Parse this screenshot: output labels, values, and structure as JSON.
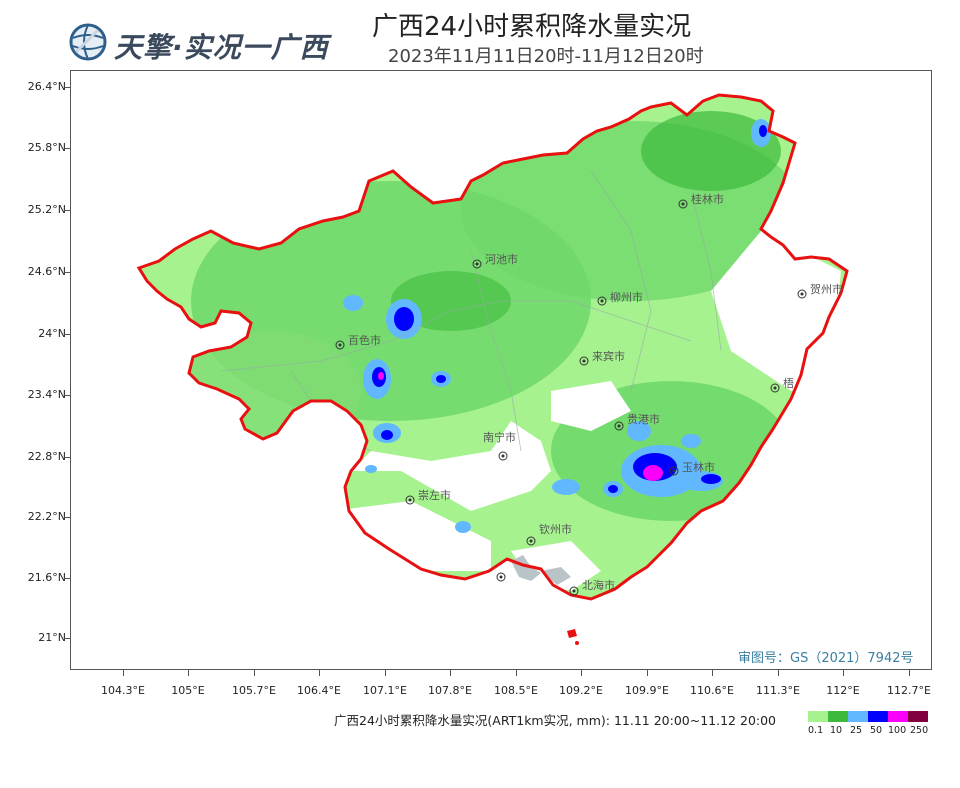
{
  "header": {
    "logo_text": "天擎·实况一广西",
    "title": "广西24小时累积降水量实况",
    "subtitle": "2023年11月11日20时-11月12日20时"
  },
  "map": {
    "lat_labels": [
      "26.4°N",
      "25.8°N",
      "25.2°N",
      "24.6°N",
      "24°N",
      "23.4°N",
      "22.8°N",
      "22.2°N",
      "21.6°N",
      "21°N"
    ],
    "lon_labels": [
      "104.3°E",
      "105°E",
      "105.7°E",
      "106.4°E",
      "107.1°E",
      "107.8°E",
      "108.5°E",
      "109.2°E",
      "109.9°E",
      "110.6°E",
      "111.3°E",
      "112°E",
      "112.7°E"
    ],
    "cities": [
      "桂林市",
      "河池市",
      "柳州市",
      "贺州市",
      "百色市",
      "来宾市",
      "梧",
      "贵港市",
      "南宁市",
      "玉林市",
      "崇左市",
      "钦州市",
      "北海市"
    ],
    "credit": "审图号：GS（2021）7942号",
    "colors": {
      "border": "#e81010",
      "light_green": "#a6f28f",
      "green": "#3dba3d",
      "blue_light": "#61b8ff",
      "blue": "#0000ff",
      "magenta": "#fa00fa",
      "dark_red": "#800040"
    }
  },
  "legend": {
    "title": "广西24小时累积降水量实况(ART1km实况, mm): 11.11 20:00~11.12 20:00",
    "ticks": [
      "0.1",
      "10",
      "25",
      "50",
      "100",
      "250"
    ],
    "colors": [
      "#a6f28f",
      "#3dba3d",
      "#61b8ff",
      "#0000fe",
      "#fa00fa",
      "#800040"
    ]
  }
}
